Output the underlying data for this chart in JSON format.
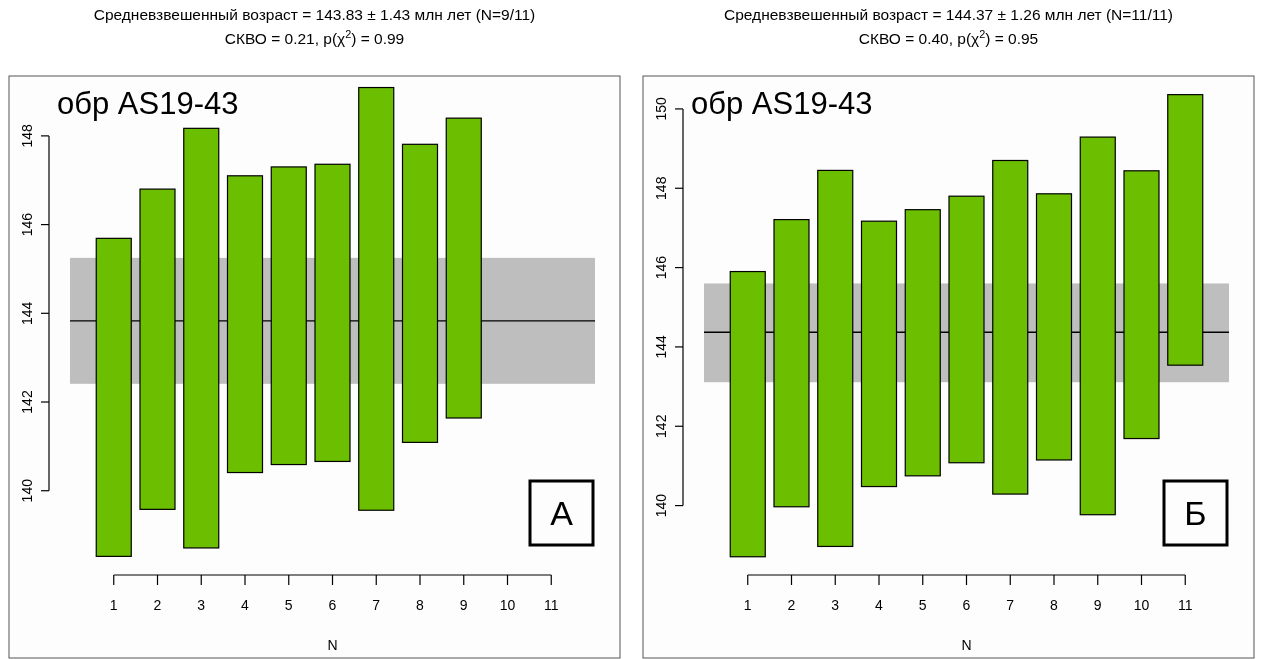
{
  "chart_data": [
    {
      "type": "bar",
      "title": "Средневзвешенный возраст = 143.83 ± 1.43 млн лет (N=9/11)",
      "subtitle": "СКВО = 0.21, p(χ$^{2}$) = 0.99",
      "xlabel": "N",
      "x": [
        1,
        2,
        3,
        4,
        5,
        6,
        7,
        8,
        9
      ],
      "base": [
        138.52,
        139.58,
        138.71,
        140.41,
        140.59,
        140.66,
        139.56,
        141.09,
        141.64
      ],
      "values": [
        7.17,
        7.22,
        9.46,
        6.69,
        6.71,
        6.7,
        9.53,
        6.72,
        6.76
      ],
      "color": "#6bbf00",
      "xlim": [
        0,
        12
      ],
      "ylim": [
        138.1,
        149.35
      ],
      "xticks": [
        1,
        2,
        3,
        4,
        5,
        6,
        7,
        8,
        9,
        10,
        11
      ],
      "yticks": [
        140,
        142,
        144,
        146,
        148
      ],
      "bands": [
        {
          "axis": "y",
          "from": 142.41,
          "to": 145.25,
          "color": "#bebebe"
        }
      ],
      "ref_lines": [
        {
          "axis": "y",
          "value": 143.83,
          "color": "#000000"
        }
      ],
      "annotations": [
        "обр AS19-43",
        "А"
      ]
    },
    {
      "type": "bar",
      "title": "Средневзвешенный возраст = 144.37 ± 1.26 млн лет (N=11/11)",
      "subtitle": "СКВО = 0.40, p(χ$^{2}$) = 0.95",
      "xlabel": "N",
      "x": [
        1,
        2,
        3,
        4,
        5,
        6,
        7,
        8,
        9,
        10,
        11
      ],
      "base": [
        138.71,
        139.97,
        138.97,
        140.48,
        140.75,
        141.08,
        140.29,
        141.15,
        139.77,
        141.69,
        143.54
      ],
      "values": [
        7.19,
        7.24,
        9.48,
        6.69,
        6.71,
        6.72,
        8.41,
        6.71,
        9.52,
        6.75,
        6.82
      ],
      "color": "#6bbf00",
      "xlim": [
        0,
        12
      ],
      "ylim": [
        138.25,
        150.83
      ],
      "xticks": [
        1,
        2,
        3,
        4,
        5,
        6,
        7,
        8,
        9,
        10,
        11
      ],
      "yticks": [
        140,
        142,
        144,
        146,
        148,
        150
      ],
      "bands": [
        {
          "axis": "y",
          "from": 143.11,
          "to": 145.6,
          "color": "#bebebe"
        }
      ],
      "ref_lines": [
        {
          "axis": "y",
          "value": 144.37,
          "color": "#000000"
        }
      ],
      "annotations": [
        "обр AS19-43",
        "Б"
      ]
    }
  ]
}
